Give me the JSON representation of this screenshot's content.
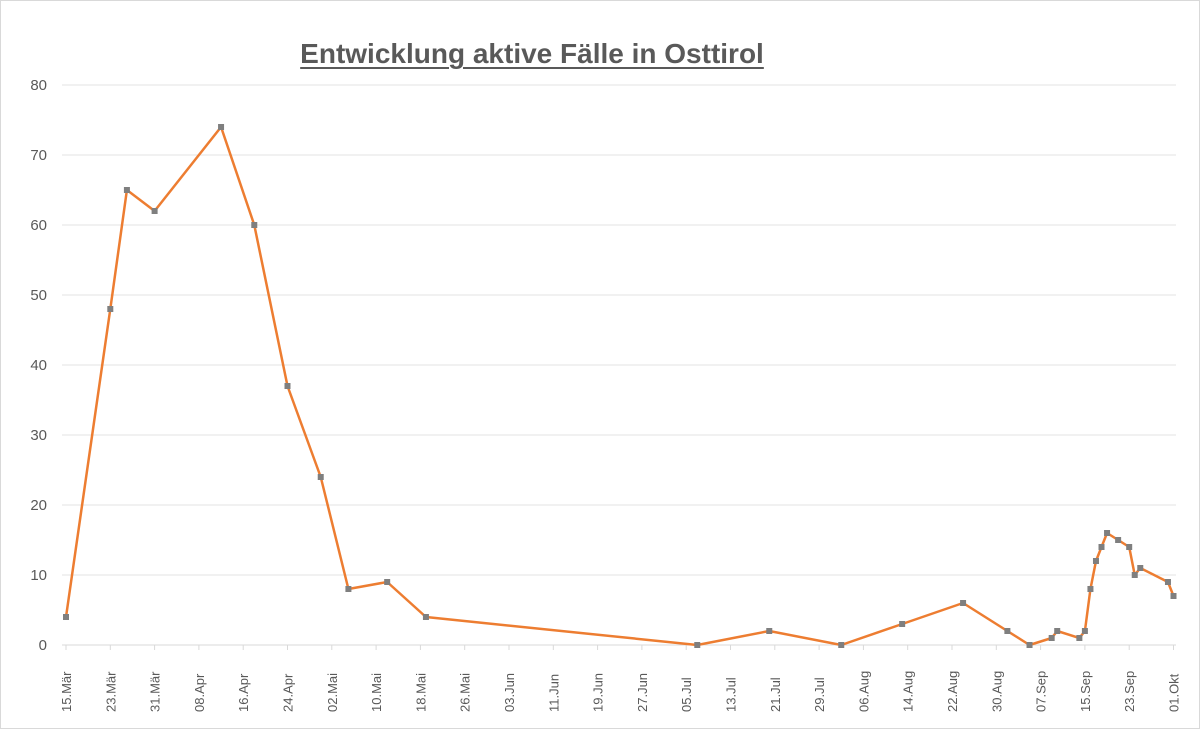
{
  "chart_data": {
    "type": "line",
    "title": "Entwicklung aktive Fälle in Osttirol",
    "xlabel": "",
    "ylabel": "",
    "ylim": [
      0,
      80
    ],
    "yticks": [
      0,
      10,
      20,
      30,
      40,
      50,
      60,
      70,
      80
    ],
    "xticks": [
      "15.Mär",
      "23.Mär",
      "31.Mär",
      "08.Apr",
      "16.Apr",
      "24.Apr",
      "02.Mai",
      "10.Mai",
      "18.Mai",
      "26.Mai",
      "03.Jun",
      "11.Jun",
      "19.Jun",
      "27.Jun",
      "05.Jul",
      "13.Jul",
      "21.Jul",
      "29.Jul",
      "06.Aug",
      "14.Aug",
      "22.Aug",
      "30.Aug",
      "07.Sep",
      "15.Sep",
      "23.Sep",
      "01.Okt"
    ],
    "grid": true,
    "legend": "none",
    "series": [
      {
        "name": "aktive Fälle",
        "color": "#ed7d31",
        "marker_color": "#7f7f7f",
        "points": [
          {
            "x": "15.Mär",
            "d": 0,
            "y": 4
          },
          {
            "x": "23.Mär",
            "d": 8,
            "y": 48
          },
          {
            "x": "26.Mär",
            "d": 11,
            "y": 65
          },
          {
            "x": "31.Mär",
            "d": 16,
            "y": 62
          },
          {
            "x": "12.Apr",
            "d": 28,
            "y": 74
          },
          {
            "x": "18.Apr",
            "d": 34,
            "y": 60
          },
          {
            "x": "24.Apr",
            "d": 40,
            "y": 37
          },
          {
            "x": "30.Apr",
            "d": 46,
            "y": 24
          },
          {
            "x": "05.Mai",
            "d": 51,
            "y": 8
          },
          {
            "x": "12.Mai",
            "d": 58,
            "y": 9
          },
          {
            "x": "19.Mai",
            "d": 65,
            "y": 4
          },
          {
            "x": "07.Jul",
            "d": 114,
            "y": 0
          },
          {
            "x": "20.Jul",
            "d": 127,
            "y": 2
          },
          {
            "x": "02.Aug",
            "d": 140,
            "y": 0
          },
          {
            "x": "13.Aug",
            "d": 151,
            "y": 3
          },
          {
            "x": "24.Aug",
            "d": 162,
            "y": 6
          },
          {
            "x": "01.Sep",
            "d": 170,
            "y": 2
          },
          {
            "x": "05.Sep",
            "d": 174,
            "y": 0
          },
          {
            "x": "09.Sep",
            "d": 178,
            "y": 1
          },
          {
            "x": "10.Sep",
            "d": 179,
            "y": 2
          },
          {
            "x": "14.Sep",
            "d": 183,
            "y": 1
          },
          {
            "x": "15.Sep",
            "d": 184,
            "y": 2
          },
          {
            "x": "16.Sep",
            "d": 185,
            "y": 8
          },
          {
            "x": "17.Sep",
            "d": 186,
            "y": 12
          },
          {
            "x": "18.Sep",
            "d": 187,
            "y": 14
          },
          {
            "x": "19.Sep",
            "d": 188,
            "y": 16
          },
          {
            "x": "21.Sep",
            "d": 190,
            "y": 15
          },
          {
            "x": "23.Sep",
            "d": 192,
            "y": 14
          },
          {
            "x": "24.Sep",
            "d": 193,
            "y": 10
          },
          {
            "x": "25.Sep",
            "d": 194,
            "y": 11
          },
          {
            "x": "30.Sep",
            "d": 199,
            "y": 9
          },
          {
            "x": "01.Okt",
            "d": 200,
            "y": 7
          }
        ]
      }
    ]
  }
}
